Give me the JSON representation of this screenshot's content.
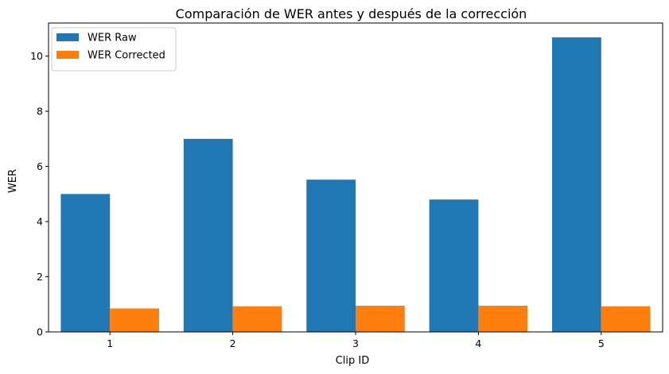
{
  "chart_data": {
    "type": "bar",
    "title": "Comparación de WER antes y después de la corrección",
    "xlabel": "Clip ID",
    "ylabel": "WER",
    "categories": [
      "1",
      "2",
      "3",
      "4",
      "5"
    ],
    "series": [
      {
        "name": "WER Raw",
        "color": "#1f77b4",
        "values": [
          5.0,
          7.0,
          5.52,
          4.8,
          10.68
        ]
      },
      {
        "name": "WER Corrected",
        "color": "#ff7f0e",
        "values": [
          0.85,
          0.93,
          0.95,
          0.95,
          0.93
        ]
      }
    ],
    "ylim": [
      0,
      11.2
    ],
    "yticks": [
      0,
      2,
      4,
      6,
      8,
      10
    ],
    "grid": false,
    "legend": "top-left"
  }
}
